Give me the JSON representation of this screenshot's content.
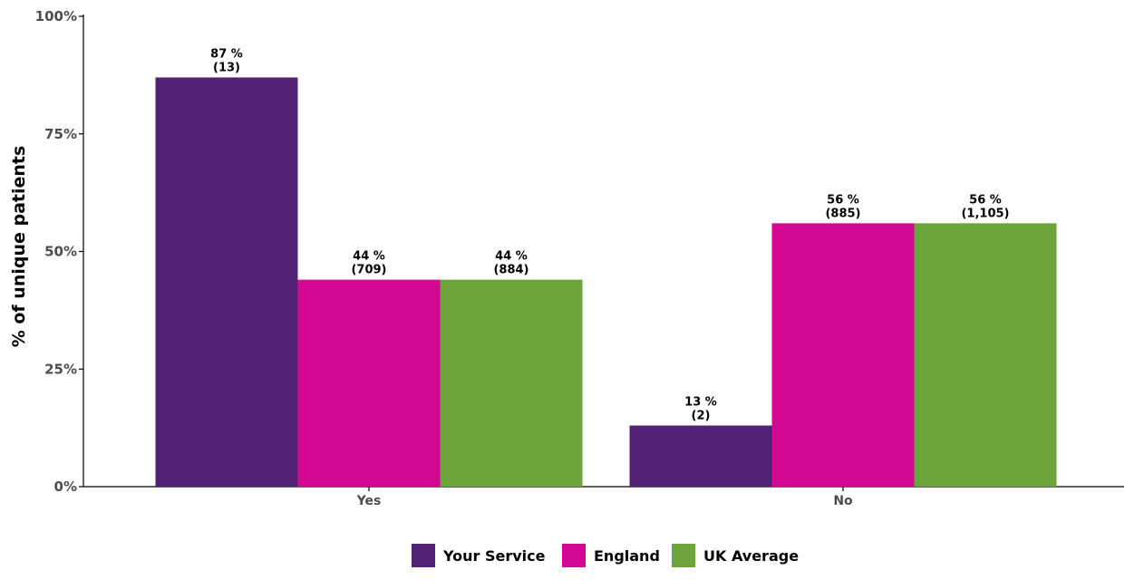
{
  "chart_data": {
    "type": "bar",
    "categories": [
      "Yes",
      "No"
    ],
    "series": [
      {
        "name": "Your Service",
        "color": "#512173",
        "values": [
          87,
          13
        ],
        "counts": [
          "(13)",
          "(2)"
        ],
        "labels": [
          "87 %",
          "13 %"
        ]
      },
      {
        "name": "England",
        "color": "#d30994",
        "values": [
          44,
          56
        ],
        "counts": [
          "(709)",
          "(885)"
        ],
        "labels": [
          "44 %",
          "56 %"
        ]
      },
      {
        "name": "UK Average",
        "color": "#6ca43b",
        "values": [
          44,
          56
        ],
        "counts": [
          "(884)",
          "(1,105)"
        ],
        "labels": [
          "44 %",
          "56 %"
        ]
      }
    ],
    "ylabel": "% of unique patients",
    "xlabel": "",
    "ylim": [
      0,
      100
    ],
    "yticks": [
      0,
      25,
      50,
      75,
      100
    ],
    "ytick_labels": [
      "0%",
      "25%",
      "50%",
      "75%",
      "100%"
    ],
    "grid": false,
    "legend_position": "bottom"
  }
}
